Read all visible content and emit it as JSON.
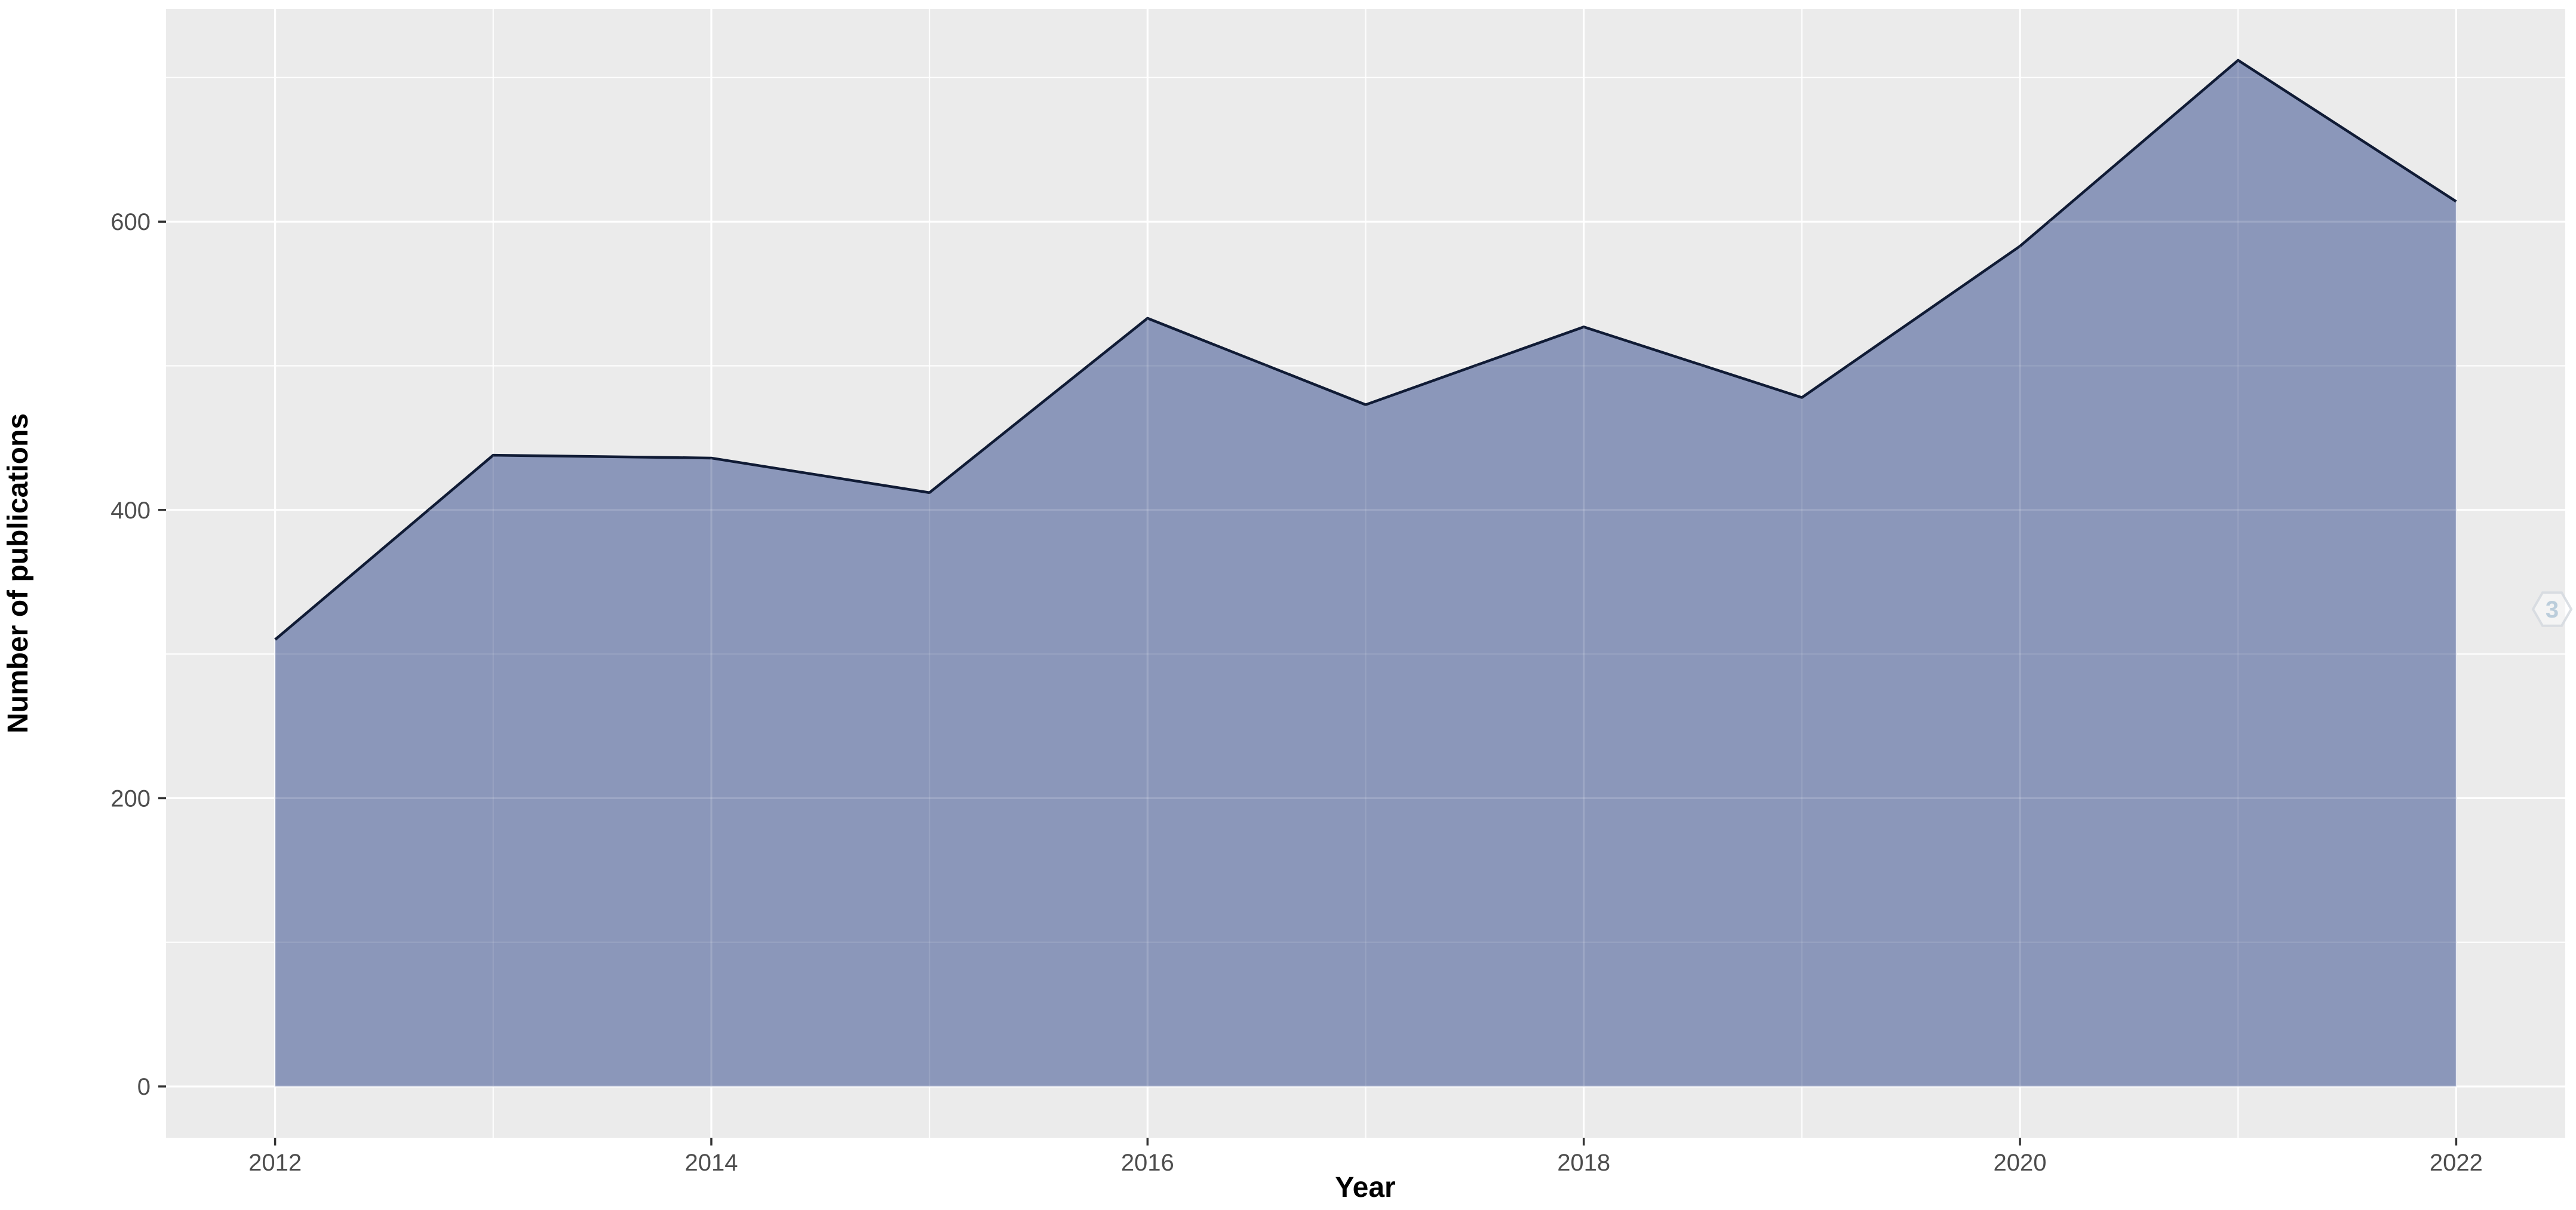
{
  "chart_data": {
    "type": "area",
    "xlabel": "Year",
    "ylabel": "Number of publications",
    "x": [
      2012,
      2013,
      2014,
      2015,
      2016,
      2017,
      2018,
      2019,
      2020,
      2021,
      2022
    ],
    "values": [
      310,
      438,
      436,
      412,
      533,
      473,
      527,
      478,
      583,
      712,
      614
    ],
    "series_name": "Number of publications",
    "x_ticks": [
      2012,
      2014,
      2016,
      2018,
      2020,
      2022
    ],
    "x_minor_ticks": [
      2013,
      2015,
      2017,
      2019,
      2021
    ],
    "y_ticks": [
      0,
      200,
      400,
      600
    ],
    "y_minor_ticks": [
      100,
      300,
      500,
      700
    ],
    "xlim": [
      2011.5,
      2022.5
    ],
    "ylim": [
      -35.6,
      747.6
    ],
    "baseline": 0,
    "grid": "major and minor, white on grey panel",
    "legend_position": "none",
    "colors": {
      "area_fill": "#8B97BA",
      "line": "#101B35",
      "panel_background": "#EBEBEB",
      "gridline": "#FFFFFF",
      "tick_mark": "#333333",
      "tick_label": "#4D4D4D",
      "axis_title": "#000000"
    }
  },
  "watermark": {
    "text": "3",
    "shape": "hexagon-outline",
    "stroke_color": "#D5DAE0",
    "text_color": "#B3C8D9"
  }
}
